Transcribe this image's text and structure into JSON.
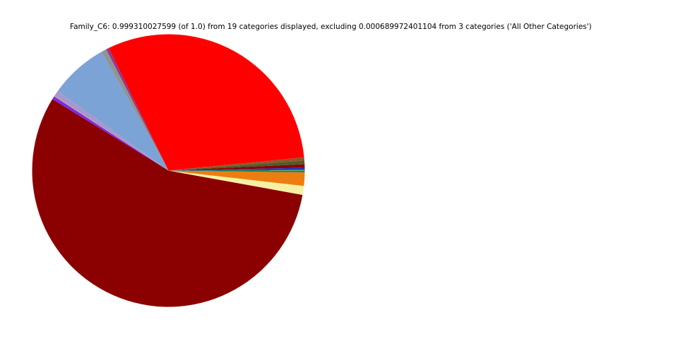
{
  "chart_data": {
    "type": "pie",
    "title": "Family_C6: 0.999310027599 (of 1.0) from 19 categories displayed, excluding 0.000689972401104 from 3 categories ('All Other Categories')",
    "displayed_fraction": "0.999310027599",
    "displayed_fraction_of": "1.0",
    "displayed_categories_count": "19",
    "excluded_fraction": "0.000689972401104",
    "excluded_categories_count": "3",
    "excluded_label": "All Other Categories",
    "legend": "none",
    "wedge_labels_shown": false,
    "visible_wedge_count": 16,
    "start_deg": 4.2,
    "counterclockwise": true,
    "wedges": [
      {
        "name": "sienna",
        "color": "#8F572F",
        "deg": 1.38,
        "pct_of_circle": 0.38
      },
      {
        "name": "red",
        "color": "#FF0000",
        "deg": 110.43,
        "pct_of_circle": 30.67
      },
      {
        "name": "purple",
        "color": "#8E3A90",
        "deg": 1.2,
        "pct_of_circle": 0.33
      },
      {
        "name": "gray",
        "color": "#8F9494",
        "deg": 2.2,
        "pct_of_circle": 0.61
      },
      {
        "name": "light-blue",
        "color": "#7BA3D6",
        "deg": 24.9,
        "pct_of_circle": 6.92
      },
      {
        "name": "plum",
        "color": "#A897CD",
        "deg": 2.4,
        "pct_of_circle": 0.67
      },
      {
        "name": "tan",
        "color": "#C9B26B",
        "deg": 0.3,
        "pct_of_circle": 0.08
      },
      {
        "name": "blue-violet",
        "color": "#7B2BEA",
        "deg": 1.4,
        "pct_of_circle": 0.39
      },
      {
        "name": "dark-red",
        "color": "#8B0000",
        "deg": 201.3,
        "pct_of_circle": 55.92
      },
      {
        "name": "pale-yellow",
        "color": "#F7F0A2",
        "deg": 3.8,
        "pct_of_circle": 1.06
      },
      {
        "name": "orange",
        "color": "#EC7E10",
        "deg": 5.75,
        "pct_of_circle": 1.6
      },
      {
        "name": "teal",
        "color": "#00808A",
        "deg": 0.7,
        "pct_of_circle": 0.19
      },
      {
        "name": "green",
        "color": "#168016",
        "deg": 0.43,
        "pct_of_circle": 0.12
      },
      {
        "name": "blue",
        "color": "#2433CE",
        "deg": 0.8,
        "pct_of_circle": 0.22
      },
      {
        "name": "dark-red-2",
        "color": "#8B0000",
        "deg": 1.48,
        "pct_of_circle": 0.41
      },
      {
        "name": "dark-olive",
        "color": "#4E5D23",
        "deg": 1.53,
        "pct_of_circle": 0.43
      }
    ]
  }
}
